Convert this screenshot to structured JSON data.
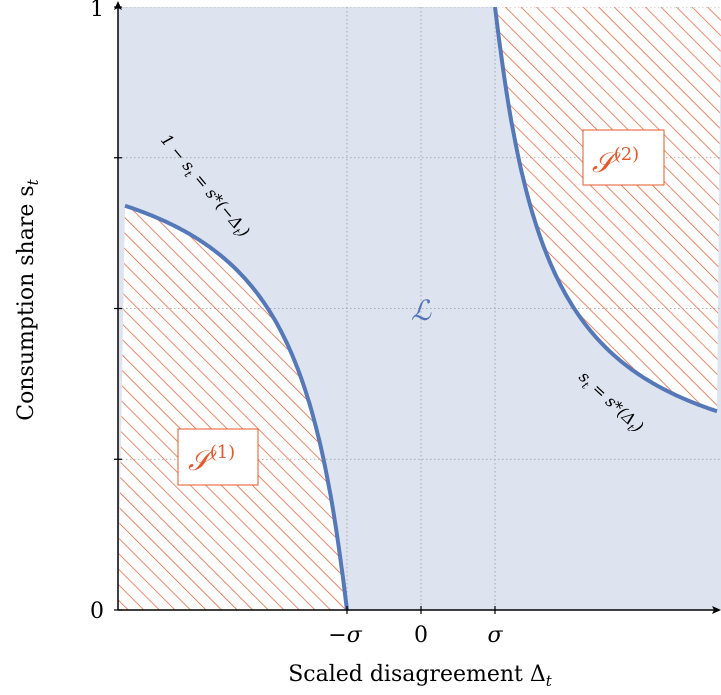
{
  "chart_data": {
    "type": "area",
    "xlabel": "Scaled disagreement Δt",
    "ylabel": "Consumption share st",
    "ylim": [
      0,
      1
    ],
    "x_ticks": [
      {
        "value": -1,
        "label": "−σ"
      },
      {
        "value": 0,
        "label": "0"
      },
      {
        "value": 1,
        "label": "σ"
      }
    ],
    "y_ticks": [
      {
        "value": 0,
        "label": "0"
      },
      {
        "value": 1,
        "label": "1"
      }
    ],
    "grid": true,
    "regions": [
      {
        "name": "L",
        "label": "ℒ",
        "fill": "light-blue"
      },
      {
        "name": "S1",
        "label": "𝒮",
        "superscript": "(1)",
        "fill": "orange-hatch",
        "position": "lower-left"
      },
      {
        "name": "S2",
        "label": "𝒮",
        "superscript": "(2)",
        "fill": "orange-hatch",
        "position": "upper-right"
      }
    ],
    "series": [
      {
        "name": "1 − st = s*(−Δt)",
        "boundary_of": "S1"
      },
      {
        "name": "st = s*(Δt)",
        "boundary_of": "S2"
      }
    ]
  },
  "colors": {
    "region_fill": "#dde3ef",
    "hatch": "#e8572a",
    "curve": "#5578b9",
    "grid": "#9a9a9a"
  },
  "labels": {
    "y_tick_0": "0",
    "y_tick_1": "1",
    "x_tick_neg_sigma": "−σ",
    "x_tick_0": "0",
    "x_tick_sigma": "σ",
    "x_title": "Scaled disagreement Δ",
    "x_title_sub": "t",
    "y_title": "Consumption share s",
    "y_title_sub": "t",
    "curve1_a": "1 − s",
    "curve1_sub": "t",
    "curve1_b": " = s*(−Δ",
    "curve1_sub2": "t",
    "curve1_c": ")",
    "curve2_a": "s",
    "curve2_sub": "t",
    "curve2_b": " = s*(Δ",
    "curve2_sub2": "t",
    "curve2_c": ")",
    "L": "ℒ",
    "S1": "𝒮",
    "S1_sup": "(1)",
    "S2": "𝒮",
    "S2_sup": "(2)"
  }
}
